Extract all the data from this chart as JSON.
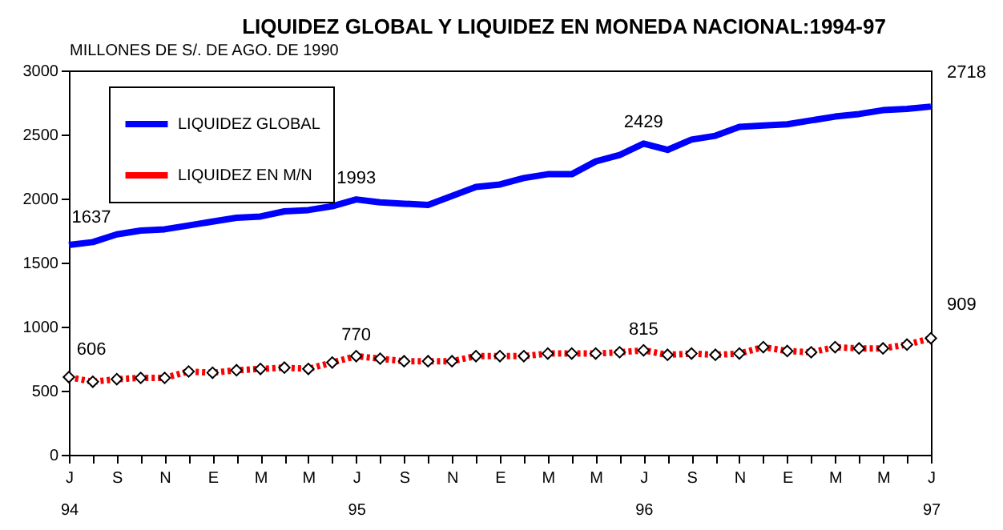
{
  "chart_data": {
    "type": "line",
    "title": "LIQUIDEZ GLOBAL Y LIQUIDEZ EN MONEDA NACIONAL:1994-97",
    "ylabel": "MILLONES DE S/. DE AGO. DE 1990",
    "categories": [
      "J\n94",
      null,
      "S",
      null,
      "N",
      null,
      "E",
      null,
      "M",
      null,
      "M",
      null,
      "J\n95",
      null,
      "S",
      null,
      "N",
      null,
      "E",
      null,
      "M",
      null,
      "M",
      null,
      "J\n96",
      null,
      "S",
      null,
      "N",
      null,
      "E",
      null,
      "M",
      null,
      "M",
      null,
      "J\n97"
    ],
    "series": [
      {
        "name": "LIQUIDEZ GLOBAL",
        "color": "#0000ff",
        "marker": "none",
        "line_style": "solid",
        "values": [
          1637,
          1660,
          1720,
          1750,
          1760,
          1790,
          1820,
          1850,
          1860,
          1900,
          1910,
          1940,
          1993,
          1970,
          1960,
          1950,
          2020,
          2090,
          2110,
          2160,
          2190,
          2190,
          2290,
          2340,
          2429,
          2380,
          2460,
          2490,
          2560,
          2570,
          2580,
          2610,
          2640,
          2660,
          2690,
          2700,
          2718
        ],
        "value_labels": [
          "1637",
          null,
          null,
          null,
          null,
          null,
          null,
          null,
          null,
          null,
          null,
          null,
          "1993",
          null,
          null,
          null,
          null,
          null,
          null,
          null,
          null,
          null,
          null,
          null,
          "2429",
          null,
          null,
          null,
          null,
          null,
          null,
          null,
          null,
          null,
          null,
          null,
          "2718"
        ]
      },
      {
        "name": "LIQUIDEZ EN M/N",
        "color": "#ff0000",
        "marker": "diamond",
        "line_style": "dotted",
        "values": [
          606,
          570,
          590,
          600,
          600,
          650,
          640,
          660,
          670,
          680,
          670,
          720,
          770,
          750,
          730,
          730,
          730,
          770,
          770,
          770,
          790,
          790,
          790,
          800,
          815,
          780,
          790,
          780,
          790,
          840,
          810,
          800,
          840,
          830,
          830,
          860,
          909
        ],
        "value_labels": [
          "606",
          null,
          null,
          null,
          null,
          null,
          null,
          null,
          null,
          null,
          null,
          null,
          "770",
          null,
          null,
          null,
          null,
          null,
          null,
          null,
          null,
          null,
          null,
          null,
          "815",
          null,
          null,
          null,
          null,
          null,
          null,
          null,
          null,
          null,
          null,
          null,
          "909"
        ]
      }
    ],
    "ylim": [
      0,
      3000
    ],
    "yticks": [
      0,
      500,
      1000,
      1500,
      2000,
      2500,
      3000
    ],
    "grid": false,
    "legend": "top left"
  }
}
